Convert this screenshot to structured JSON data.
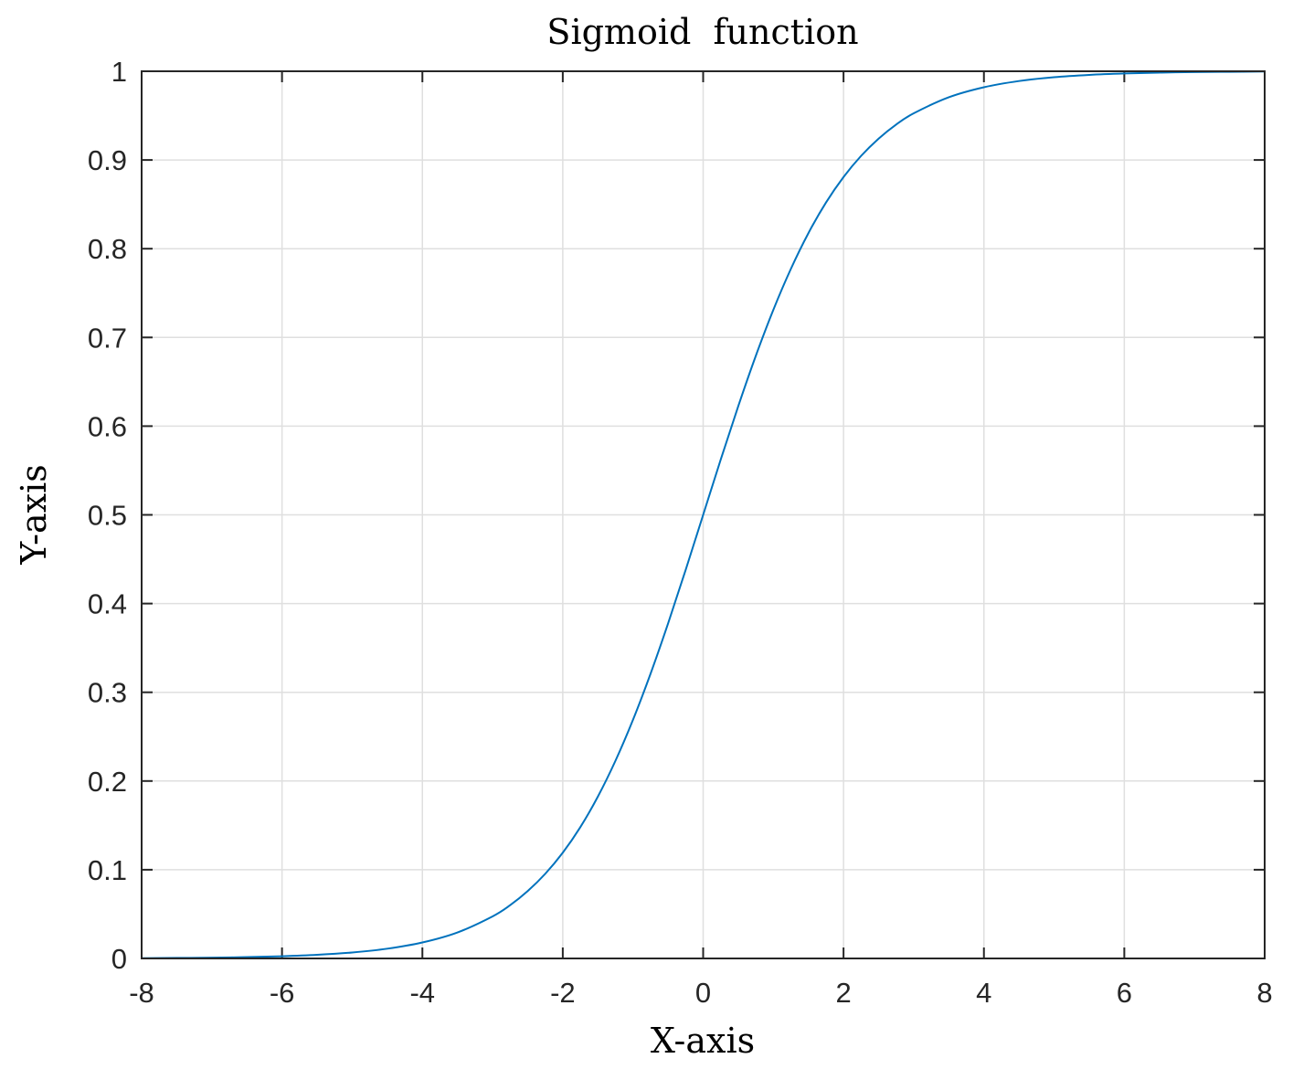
{
  "chart_data": {
    "type": "line",
    "title": "Sigmoid  function",
    "xlabel": "X-axis",
    "ylabel": "Y-axis",
    "xlim": [
      -8,
      8
    ],
    "ylim": [
      0,
      1
    ],
    "xticks": [
      -8,
      -6,
      -4,
      -2,
      0,
      2,
      4,
      6,
      8
    ],
    "xtick_labels": [
      "-8",
      "-6",
      "-4",
      "-2",
      "0",
      "2",
      "4",
      "6",
      "8"
    ],
    "yticks": [
      0,
      0.1,
      0.2,
      0.3,
      0.4,
      0.5,
      0.6,
      0.7,
      0.8,
      0.9,
      1
    ],
    "ytick_labels": [
      "0",
      "0.1",
      "0.2",
      "0.3",
      "0.4",
      "0.5",
      "0.6",
      "0.7",
      "0.8",
      "0.9",
      "1"
    ],
    "grid": true,
    "series": [
      {
        "color": "#0072bd",
        "x": [
          -8,
          -7.5,
          -7,
          -6.5,
          -6,
          -5.5,
          -5,
          -4.5,
          -4,
          -3.5,
          -3,
          -2.75,
          -2.5,
          -2.25,
          -2,
          -1.75,
          -1.5,
          -1.25,
          -1,
          -0.75,
          -0.5,
          -0.25,
          0,
          0.25,
          0.5,
          0.75,
          1,
          1.25,
          1.5,
          1.75,
          2,
          2.25,
          2.5,
          2.75,
          3,
          3.5,
          4,
          4.5,
          5,
          5.5,
          6,
          6.5,
          7,
          7.5,
          8
        ],
        "y": [
          0.0003,
          0.0006,
          0.0009,
          0.0015,
          0.0025,
          0.0041,
          0.0067,
          0.011,
          0.018,
          0.0293,
          0.0474,
          0.06,
          0.0759,
          0.0954,
          0.1192,
          0.148,
          0.1824,
          0.2227,
          0.2689,
          0.3208,
          0.3775,
          0.4378,
          0.5,
          0.5622,
          0.6225,
          0.6792,
          0.7311,
          0.7773,
          0.8176,
          0.852,
          0.8808,
          0.9046,
          0.9241,
          0.94,
          0.9526,
          0.9707,
          0.982,
          0.989,
          0.9933,
          0.9959,
          0.9975,
          0.9985,
          0.9991,
          0.9994,
          0.9997
        ]
      }
    ]
  }
}
